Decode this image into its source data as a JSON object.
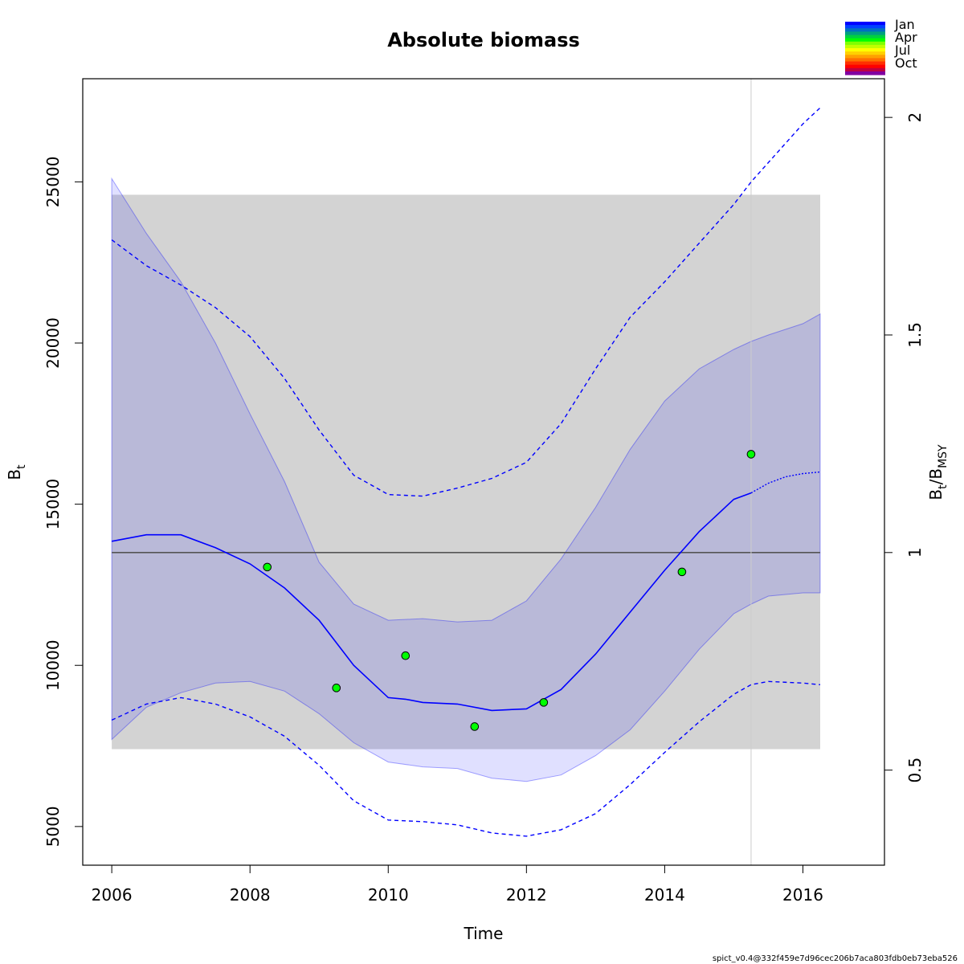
{
  "chart_data": {
    "type": "line",
    "title": "Absolute biomass",
    "xlabel": "Time",
    "ylabel_main": "B",
    "ylabel_sub": "t",
    "y2label_main": "B",
    "y2label_sub1": "t",
    "y2label_slash": "/B",
    "y2label_sub2": "MSY",
    "xlim": [
      2005.58,
      2017.18
    ],
    "ylim": [
      3800,
      28200
    ],
    "x_ticks": [
      2006,
      2008,
      2010,
      2012,
      2014,
      2016
    ],
    "x_tick_labels": [
      "2006",
      "2008",
      "2010",
      "2012",
      "2014",
      "2016"
    ],
    "y_ticks": [
      5000,
      10000,
      15000,
      20000,
      25000
    ],
    "y_tick_labels": [
      "5000",
      "10000",
      "15000",
      "20000",
      "25000"
    ],
    "bmsy": 13500,
    "y2_ticks": [
      0.5,
      1,
      1.5,
      2
    ],
    "y2_tick_labels": [
      "0.5",
      "1",
      "1.5",
      "2"
    ],
    "bmsy_ci_rect": {
      "x": [
        2006,
        2016.25
      ],
      "y": [
        7400,
        24600
      ]
    },
    "last_obs_time": 2015.25,
    "series": [
      {
        "role": "estimate",
        "x": [
          2006,
          2006.5,
          2007,
          2007.5,
          2008,
          2008.5,
          2009,
          2009.5,
          2010,
          2010.25,
          2010.5,
          2011,
          2011.5,
          2012,
          2012.5,
          2013,
          2013.5,
          2014,
          2014.5,
          2015,
          2015.25
        ],
        "y": [
          13850,
          14050,
          14050,
          13650,
          13150,
          12400,
          11400,
          10000,
          9000,
          8950,
          8850,
          8800,
          8600,
          8650,
          9250,
          10350,
          11650,
          12950,
          14150,
          15150,
          15350
        ]
      },
      {
        "role": "forecast",
        "x": [
          2015.25,
          2015.5,
          2015.75,
          2016,
          2016.25
        ],
        "y": [
          15350,
          15650,
          15850,
          15950,
          16000
        ]
      },
      {
        "role": "ci-lower",
        "x": [
          2006,
          2006.5,
          2007,
          2007.5,
          2008,
          2008.5,
          2009,
          2009.5,
          2010,
          2010.5,
          2011,
          2011.5,
          2012,
          2012.5,
          2013,
          2013.5,
          2014,
          2014.5,
          2015,
          2015.25,
          2015.5,
          2016,
          2016.25
        ],
        "y": [
          8300,
          8800,
          9000,
          8800,
          8400,
          7800,
          6900,
          5800,
          5200,
          5150,
          5050,
          4800,
          4700,
          4900,
          5400,
          6300,
          7300,
          8250,
          9100,
          9400,
          9500,
          9450,
          9400
        ]
      },
      {
        "role": "ci-upper",
        "x": [
          2006,
          2006.5,
          2007,
          2007.5,
          2008,
          2008.5,
          2009,
          2009.5,
          2010,
          2010.5,
          2011,
          2011.5,
          2012,
          2012.5,
          2013,
          2013.5,
          2014,
          2014.5,
          2015,
          2015.25,
          2015.5,
          2016,
          2016.25
        ],
        "y": [
          23200,
          22400,
          21800,
          21100,
          20200,
          18900,
          17300,
          15900,
          15300,
          15250,
          15500,
          15800,
          16300,
          17500,
          19200,
          20800,
          21900,
          23100,
          24300,
          25000,
          25600,
          26800,
          27300
        ]
      },
      {
        "role": "band-lower",
        "x": [
          2006,
          2006.5,
          2007,
          2007.5,
          2008,
          2008.5,
          2009,
          2009.5,
          2010,
          2010.5,
          2011,
          2011.5,
          2012,
          2012.5,
          2013,
          2013.5,
          2014,
          2014.5,
          2015,
          2015.25,
          2015.5,
          2016,
          2016.25
        ],
        "y": [
          7700,
          8700,
          9150,
          9450,
          9500,
          9200,
          8500,
          7600,
          7000,
          6850,
          6800,
          6500,
          6400,
          6600,
          7200,
          8000,
          9200,
          10500,
          11600,
          11900,
          12150,
          12250,
          12250
        ]
      },
      {
        "role": "band-upper",
        "x": [
          2006,
          2006.5,
          2007,
          2007.5,
          2008,
          2008.5,
          2009,
          2009.5,
          2010,
          2010.5,
          2011,
          2011.5,
          2012,
          2012.5,
          2013,
          2013.5,
          2014,
          2014.5,
          2015,
          2015.25,
          2015.5,
          2016,
          2016.25
        ],
        "y": [
          25100,
          23400,
          21900,
          20000,
          17800,
          15700,
          13200,
          11900,
          11400,
          11450,
          11350,
          11400,
          12000,
          13300,
          14900,
          16700,
          18200,
          19200,
          19800,
          20050,
          20250,
          20600,
          20900
        ]
      }
    ],
    "points": {
      "x": [
        2008.25,
        2009.25,
        2010.25,
        2011.25,
        2012.25,
        2014.25,
        2015.25
      ],
      "y": [
        13050,
        9300,
        10300,
        8100,
        8850,
        12900,
        16550
      ]
    },
    "legend": {
      "placement": "top-right",
      "labels": [
        "Jan",
        "Apr",
        "Jul",
        "Oct"
      ],
      "colors": [
        "#0000ff",
        "#0040ff",
        "#0070c0",
        "#00a080",
        "#00d040",
        "#00ff00",
        "#80ff00",
        "#c0ff00",
        "#ffff00",
        "#ffd000",
        "#ffa000",
        "#ff7000",
        "#ff3000",
        "#ff0000",
        "#c00040",
        "#8000a0"
      ]
    },
    "colors": {
      "estimate": "#0000ff",
      "ci_band": "rgba(0,0,255,0.12)",
      "bmsy_rect": "#d3d3d3",
      "bmsy_line": "#555555",
      "point_fill": "#00ff00"
    }
  },
  "version_text": "spict_v0.4@332f459e7d96cec206b7aca803fdb0eb73eba526"
}
